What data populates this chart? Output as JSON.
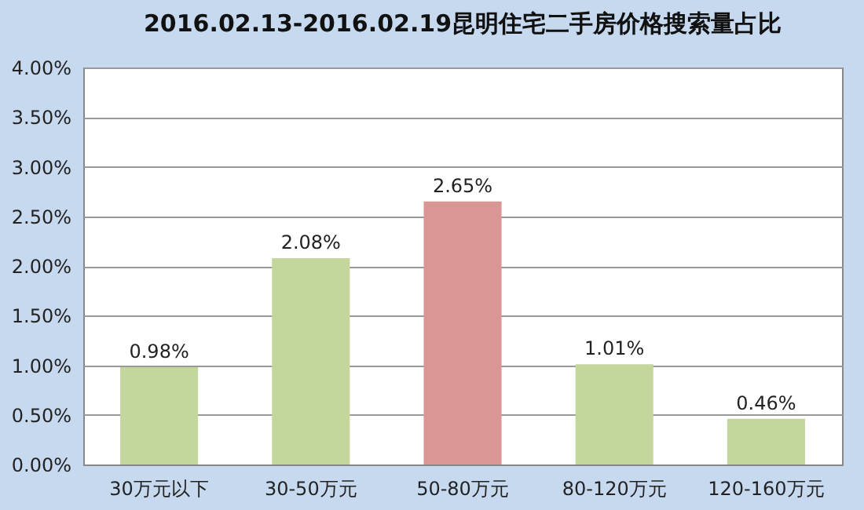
{
  "chart_data": {
    "type": "bar",
    "title": "2016.02.13-2016.02.19昆明住宅二手房价格搜索量占比",
    "categories": [
      "30万元以下",
      "30-50万元",
      "50-80万元",
      "80-120万元",
      "120-160万元"
    ],
    "values": [
      0.98,
      2.08,
      2.65,
      1.01,
      0.46
    ],
    "colors": [
      "#c3d69b",
      "#c3d69b",
      "#d99694",
      "#c3d69b",
      "#c3d69b"
    ],
    "value_labels": [
      "0.98%",
      "2.08%",
      "2.65%",
      "1.01%",
      "0.46%"
    ],
    "ylim": [
      0,
      4
    ],
    "yticks": [
      {
        "value": 0,
        "label": "0.00%"
      },
      {
        "value": 0.5,
        "label": "0.50%"
      },
      {
        "value": 1,
        "label": "1.00%"
      },
      {
        "value": 1.5,
        "label": "1.50%"
      },
      {
        "value": 2,
        "label": "2.00%"
      },
      {
        "value": 2.5,
        "label": "2.50%"
      },
      {
        "value": 3,
        "label": "3.00%"
      },
      {
        "value": 3.5,
        "label": "3.50%"
      },
      {
        "value": 4,
        "label": "4.00%"
      }
    ],
    "grid": "y",
    "legend": false
  }
}
